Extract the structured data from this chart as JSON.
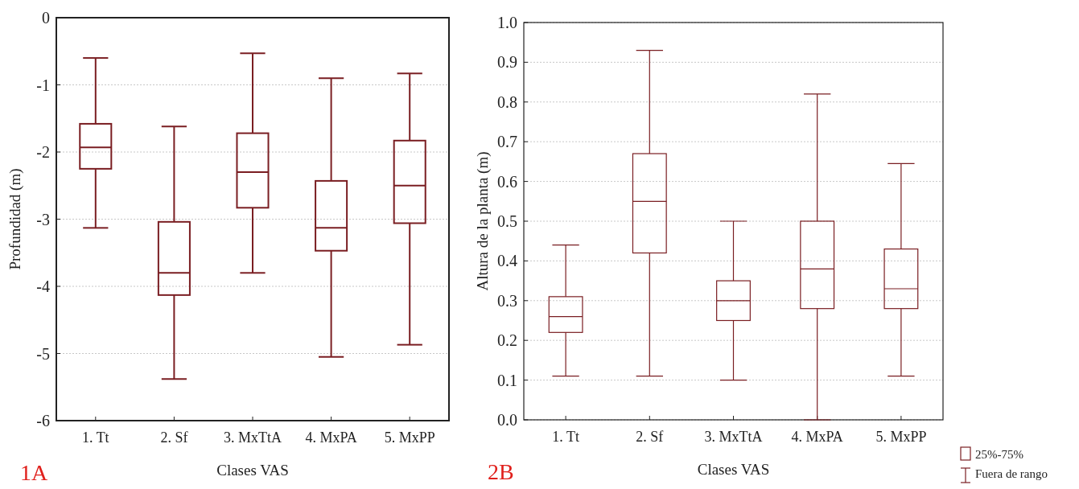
{
  "chart_data": [
    {
      "type": "box",
      "categories": [
        "1. Tt",
        "2. Sf",
        "3. MxTtA",
        "4. MxPA",
        "5. MxPP"
      ],
      "color": "#7a1e22",
      "boxes": [
        {
          "low": -3.13,
          "q1": -2.25,
          "median": -1.93,
          "q3": -1.58,
          "high": -0.6
        },
        {
          "low": -5.38,
          "q1": -4.13,
          "median": -3.8,
          "q3": -3.04,
          "high": -1.62
        },
        {
          "low": -3.8,
          "q1": -2.83,
          "median": -2.3,
          "q3": -1.72,
          "high": -0.53
        },
        {
          "low": -5.05,
          "q1": -3.47,
          "median": -3.13,
          "q3": -2.43,
          "high": -0.9
        },
        {
          "low": -4.87,
          "q1": -3.06,
          "median": -2.5,
          "q3": -1.83,
          "high": -0.83
        }
      ],
      "xlabel": "Clases VAS",
      "ylabel": "Profundidad (m)",
      "ylim": [
        -6,
        0
      ],
      "yticks": [
        -6,
        -5,
        -4,
        -3,
        -2,
        -1,
        0
      ],
      "grid": "y",
      "annotations": [
        "1A"
      ]
    },
    {
      "type": "box",
      "categories": [
        "1. Tt",
        "2. Sf",
        "3. MxTtA",
        "4. MxPA",
        "5. MxPP"
      ],
      "color": "#7a1e22",
      "boxes": [
        {
          "low": 0.11,
          "q1": 0.22,
          "median": 0.26,
          "q3": 0.31,
          "high": 0.44
        },
        {
          "low": 0.11,
          "q1": 0.42,
          "median": 0.55,
          "q3": 0.67,
          "high": 0.93
        },
        {
          "low": 0.1,
          "q1": 0.25,
          "median": 0.3,
          "q3": 0.35,
          "high": 0.5
        },
        {
          "low": 0.0,
          "q1": 0.28,
          "median": 0.38,
          "q3": 0.5,
          "high": 0.82
        },
        {
          "low": 0.11,
          "q1": 0.28,
          "median": 0.33,
          "q3": 0.43,
          "high": 0.645
        }
      ],
      "xlabel": "Clases VAS",
      "ylabel": "Altura de la planta (m)",
      "ylim": [
        0,
        1
      ],
      "yticks": [
        {
          "value": 0,
          "label": "0.0"
        },
        0.1,
        0.2,
        0.3,
        0.4,
        0.5,
        0.6,
        0.7,
        0.8,
        0.9,
        {
          "value": 1,
          "label": "1.0"
        }
      ],
      "grid": "y",
      "annotations": [
        "2B",
        "25%-75%",
        "Fuera de rango"
      ]
    }
  ]
}
